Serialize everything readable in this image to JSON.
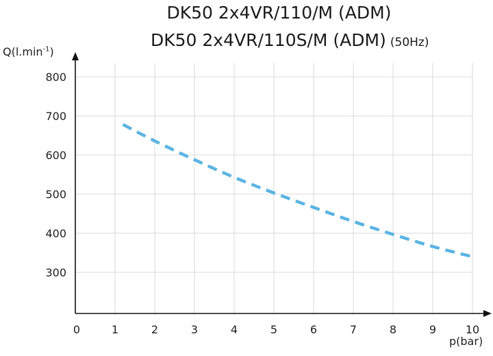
{
  "titles": {
    "line1": "DK50 2x4VR/110/M (ADM)",
    "line2": "DK50 2x4VR/110S/M (ADM)",
    "line2_suffix": "(50Hz)"
  },
  "chart_data": {
    "type": "line",
    "xlabel": "p(bar)",
    "ylabel_base": "Q(l.min",
    "ylabel_sup": "-1",
    "ylabel_close": ")",
    "xlim": [
      0,
      10
    ],
    "ylim": [
      200,
      820
    ],
    "x_ticks": [
      0,
      1,
      2,
      3,
      4,
      5,
      6,
      7,
      8,
      9,
      10
    ],
    "y_ticks": [
      300,
      400,
      500,
      600,
      700,
      800
    ],
    "grid": true,
    "series": [
      {
        "style": "dashed",
        "color": "#5ab4e3",
        "x": [
          1.2,
          2,
          3,
          4,
          5,
          6,
          7,
          8,
          9,
          10
        ],
        "y": [
          678,
          636,
          588,
          543,
          503,
          466,
          430,
          397,
          366,
          340
        ]
      }
    ]
  }
}
